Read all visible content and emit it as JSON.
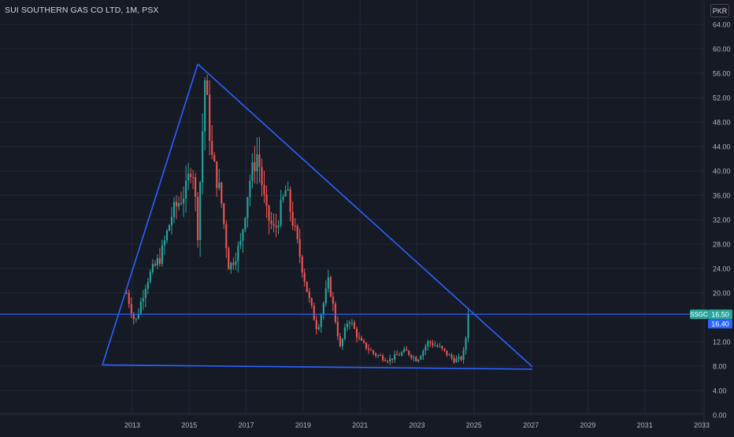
{
  "header": {
    "title": "SUI SOUTHERN GAS CO LTD, 1M, PSX",
    "currency": "PKR"
  },
  "colors": {
    "background": "#161a25",
    "grid": "#232734",
    "up": "#26a69a",
    "down": "#ef5350",
    "drawing": "#2962ff",
    "axis_text": "#b2b5be"
  },
  "chart_data": {
    "type": "candlestick",
    "symbol": "SSGC",
    "interval": "1M",
    "exchange": "PSX",
    "y_ticks": [
      "0.00",
      "4.00",
      "8.00",
      "12.00",
      "16.00",
      "20.00",
      "24.00",
      "28.00",
      "32.00",
      "36.00",
      "40.00",
      "44.00",
      "48.00",
      "52.00",
      "56.00",
      "60.00",
      "64.00"
    ],
    "x_ticks": [
      "2013",
      "2015",
      "2017",
      "2019",
      "2021",
      "2023",
      "2025",
      "2027",
      "2029",
      "2031",
      "2033"
    ],
    "ylim": [
      0,
      64
    ],
    "xlim": [
      2011.6,
      2033.1
    ],
    "grid": true,
    "price_labels": [
      {
        "label": "SSGC",
        "value": "16.50",
        "color": "#26a69a"
      },
      {
        "label": "",
        "value": "16.40",
        "color": "#2962ff"
      }
    ],
    "anchors": [
      {
        "x": 2012.8,
        "y": 20.0
      },
      {
        "x": 2013.1,
        "y": 15.0
      },
      {
        "x": 2013.5,
        "y": 22.0
      },
      {
        "x": 2014.0,
        "y": 26.0
      },
      {
        "x": 2014.4,
        "y": 33.0
      },
      {
        "x": 2014.9,
        "y": 37.0
      },
      {
        "x": 2015.1,
        "y": 42.0
      },
      {
        "x": 2015.3,
        "y": 30.0
      },
      {
        "x": 2015.55,
        "y": 55.0
      },
      {
        "x": 2015.8,
        "y": 42.0
      },
      {
        "x": 2016.1,
        "y": 36.0
      },
      {
        "x": 2016.4,
        "y": 24.0
      },
      {
        "x": 2016.8,
        "y": 28.0
      },
      {
        "x": 2017.1,
        "y": 38.0
      },
      {
        "x": 2017.4,
        "y": 43.0
      },
      {
        "x": 2017.7,
        "y": 33.0
      },
      {
        "x": 2018.0,
        "y": 30.0
      },
      {
        "x": 2018.4,
        "y": 37.0
      },
      {
        "x": 2018.8,
        "y": 28.0
      },
      {
        "x": 2019.2,
        "y": 19.0
      },
      {
        "x": 2019.5,
        "y": 14.0
      },
      {
        "x": 2019.9,
        "y": 22.0
      },
      {
        "x": 2020.3,
        "y": 11.0
      },
      {
        "x": 2020.6,
        "y": 16.0
      },
      {
        "x": 2021.0,
        "y": 12.0
      },
      {
        "x": 2021.5,
        "y": 10.0
      },
      {
        "x": 2022.0,
        "y": 9.0
      },
      {
        "x": 2022.6,
        "y": 10.5
      },
      {
        "x": 2023.0,
        "y": 9.0
      },
      {
        "x": 2023.4,
        "y": 12.0
      },
      {
        "x": 2023.8,
        "y": 11.0
      },
      {
        "x": 2024.3,
        "y": 9.0
      },
      {
        "x": 2024.6,
        "y": 9.3
      },
      {
        "x": 2024.85,
        "y": 16.5
      }
    ],
    "drawings": [
      {
        "type": "trend_line",
        "points": [
          {
            "x": 2011.95,
            "y": 8.2
          },
          {
            "x": 2015.3,
            "y": 57.5
          }
        ]
      },
      {
        "type": "trend_line",
        "points": [
          {
            "x": 2015.3,
            "y": 57.5
          },
          {
            "x": 2027.05,
            "y": 7.9
          }
        ]
      },
      {
        "type": "trend_line",
        "points": [
          {
            "x": 2011.95,
            "y": 8.2
          },
          {
            "x": 2027.05,
            "y": 7.5
          }
        ]
      },
      {
        "type": "horizontal_line",
        "y": 16.5
      }
    ]
  }
}
